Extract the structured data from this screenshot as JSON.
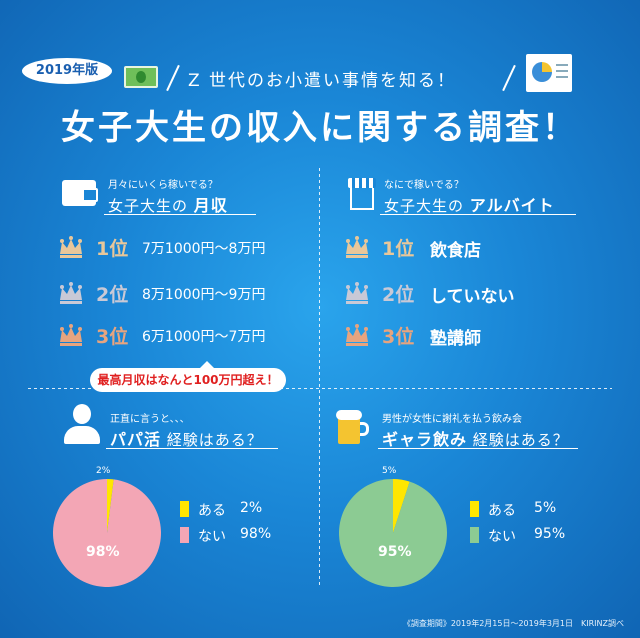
{
  "header": {
    "year_badge": "2019年版",
    "subtitle": "Z 世代のお小遣い事情を知る！",
    "title": "女子大生の収入に関する調査！",
    "icons": [
      "money-icon",
      "chart-icon"
    ]
  },
  "income": {
    "question": "月々にいくら稼いでる？",
    "title_prefix": "女子大生の",
    "title_bold": "月収",
    "ranks": [
      {
        "rank": "1位",
        "value": "7万1000円〜8万円"
      },
      {
        "rank": "2位",
        "value": "8万1000円〜9万円"
      },
      {
        "rank": "3位",
        "value": "6万1000円〜7万円"
      }
    ],
    "bubble": "最高月収はなんと100万円超え！"
  },
  "job": {
    "question": "なにで稼いでる？",
    "title_prefix": "女子大生の",
    "title_bold": "アルバイト",
    "ranks": [
      {
        "rank": "1位",
        "value": "飲食店"
      },
      {
        "rank": "2位",
        "value": "していない"
      },
      {
        "rank": "3位",
        "value": "塾講師"
      }
    ]
  },
  "papa": {
    "question": "正直に言うと、、、",
    "title_bold": "パパ活",
    "title_suffix": "経験はある？",
    "chart_data": {
      "type": "pie",
      "categories": [
        "ある",
        "ない"
      ],
      "values": [
        2,
        98
      ],
      "data_labels": [
        "2%",
        "98%"
      ],
      "colors": [
        "#ffe600",
        "#f3a6b5"
      ]
    },
    "legend": [
      {
        "label": "ある",
        "value": "2%"
      },
      {
        "label": "ない",
        "value": "98%"
      }
    ]
  },
  "gyara": {
    "question": "男性が女性に謝礼を払う飲み会",
    "title_bold": "ギャラ飲み",
    "title_suffix": "経験はある？",
    "chart_data": {
      "type": "pie",
      "categories": [
        "ある",
        "ない"
      ],
      "values": [
        5,
        95
      ],
      "data_labels": [
        "5%",
        "95%"
      ],
      "colors": [
        "#ffe600",
        "#8ccb93"
      ]
    },
    "legend": [
      {
        "label": "ある",
        "value": "5%"
      },
      {
        "label": "ない",
        "value": "95%"
      }
    ]
  },
  "footer": "《調査期間》2019年2月15日〜2019年3月1日　KIRINZ調べ",
  "colors": {
    "background": "#1a86d6",
    "gold": "#e8c79a",
    "silver": "#c9c9d6",
    "bronze": "#e7a47f",
    "bubble_text": "#e02020"
  }
}
